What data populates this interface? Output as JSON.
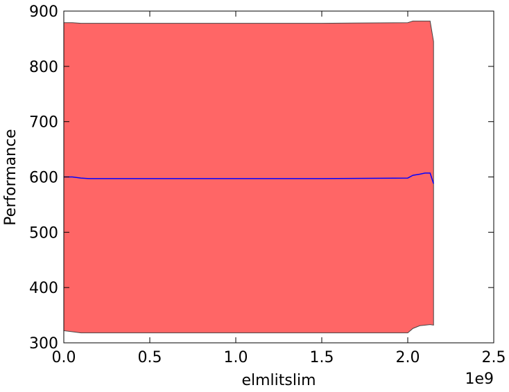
{
  "chart_data": {
    "type": "band_line",
    "xlabel": "elmlitslim",
    "ylabel": "Performance",
    "x_offset_label": "1e9",
    "x": [
      0,
      0.05,
      0.1,
      0.15,
      0.5,
      1.0,
      1.5,
      2.0,
      2.03,
      2.07,
      2.1,
      2.13,
      2.15
    ],
    "series": [
      {
        "color": "#0000ff",
        "values": [
          600,
          600,
          598,
          597,
          597,
          597,
          597,
          598,
          603,
          605,
          607,
          607,
          588
        ]
      }
    ],
    "band": {
      "color": "#ff6666",
      "edge_color": "#444444",
      "upper": [
        879,
        879,
        878,
        878,
        878,
        878,
        878,
        879,
        882,
        882,
        882,
        882,
        845
      ],
      "lower": [
        322,
        320,
        318,
        318,
        318,
        318,
        318,
        318,
        326,
        331,
        332,
        333,
        332
      ]
    },
    "xlim": [
      0,
      2.5
    ],
    "ylim": [
      300,
      900
    ],
    "xticks": [
      {
        "value": 0,
        "label": "0.0"
      },
      0.5,
      {
        "value": 1,
        "label": "1.0"
      },
      1.5,
      {
        "value": 2,
        "label": "2.0"
      },
      2.5
    ],
    "yticks": [
      300,
      400,
      500,
      600,
      700,
      800,
      900
    ],
    "grid": false
  }
}
